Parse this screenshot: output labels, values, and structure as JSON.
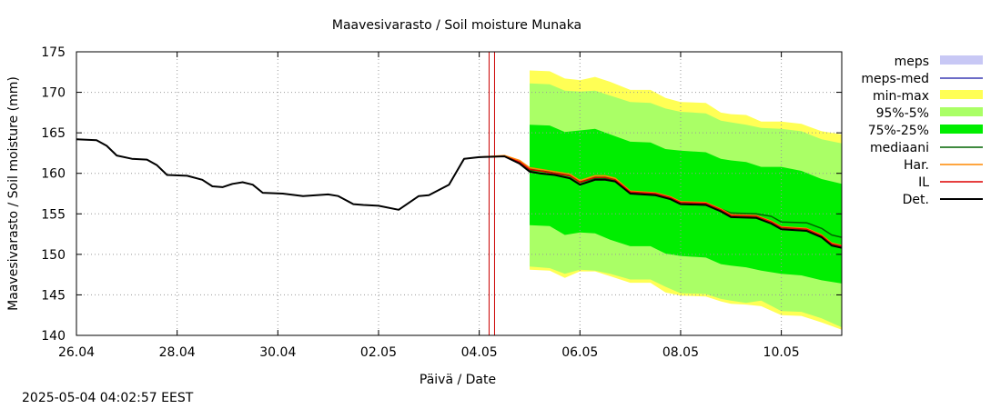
{
  "chart_data": {
    "type": "line",
    "title": "Maavesivarasto / Soil moisture   Munaka",
    "xlabel": "Päivä / Date",
    "ylabel": "Maavesivarasto / Soil moisture (mm)",
    "ylim": [
      140,
      175
    ],
    "yticks": [
      140,
      145,
      150,
      155,
      160,
      165,
      170,
      175
    ],
    "xlim": [
      0,
      15.2
    ],
    "xticks": [
      {
        "x": 0,
        "label": "26.04"
      },
      {
        "x": 2,
        "label": "28.04"
      },
      {
        "x": 4,
        "label": "30.04"
      },
      {
        "x": 6,
        "label": "02.05"
      },
      {
        "x": 8,
        "label": "04.05"
      },
      {
        "x": 10,
        "label": "06.05"
      },
      {
        "x": 12,
        "label": "08.05"
      },
      {
        "x": 14,
        "label": "10.05"
      }
    ],
    "grid": true,
    "legend_position": "right",
    "forecast_marker_x": 8.25,
    "legend": [
      {
        "label": "meps",
        "kind": "box",
        "color": "#c8c8f5"
      },
      {
        "label": "meps-med",
        "kind": "line",
        "color": "#3a3ab4"
      },
      {
        "label": "min-max",
        "kind": "box",
        "color": "#ffff55"
      },
      {
        "label": "95%-5%",
        "kind": "box",
        "color": "#aaff66"
      },
      {
        "label": "75%-25%",
        "kind": "box",
        "color": "#00ee00"
      },
      {
        "label": "mediaani",
        "kind": "line",
        "color": "#006400"
      },
      {
        "label": "Har.",
        "kind": "line",
        "color": "#ff8800"
      },
      {
        "label": "IL",
        "kind": "line",
        "color": "#dd0000"
      },
      {
        "label": "Det.",
        "kind": "line",
        "color": "#000000"
      }
    ],
    "series": [
      {
        "name": "Det.",
        "color": "#000000",
        "x": [
          0,
          0.4,
          0.6,
          0.8,
          1.1,
          1.4,
          1.6,
          1.8,
          2.2,
          2.5,
          2.7,
          2.9,
          3.1,
          3.3,
          3.5,
          3.7,
          4.1,
          4.5,
          5.0,
          5.2,
          5.5,
          5.7,
          6.0,
          6.4,
          6.8,
          7.0,
          7.4,
          7.7,
          8.0,
          8.5,
          8.8,
          9.0,
          9.2,
          9.5,
          9.8,
          10.0,
          10.3,
          10.5,
          10.7,
          11.0,
          11.5,
          11.8,
          12.0,
          12.5,
          12.8,
          13.0,
          13.5,
          13.8,
          14.0,
          14.5,
          14.8,
          15.0,
          15.2
        ],
        "y": [
          164.2,
          164.1,
          163.4,
          162.2,
          161.8,
          161.7,
          161.0,
          159.8,
          159.7,
          159.2,
          158.4,
          158.3,
          158.7,
          158.9,
          158.6,
          157.6,
          157.5,
          157.2,
          157.4,
          157.2,
          156.2,
          156.1,
          156.0,
          155.5,
          157.2,
          157.3,
          158.6,
          161.8,
          162.0,
          162.1,
          161.2,
          160.2,
          160.0,
          159.8,
          159.4,
          158.6,
          159.2,
          159.2,
          159.0,
          157.5,
          157.3,
          156.8,
          156.2,
          156.1,
          155.3,
          154.6,
          154.5,
          153.8,
          153.1,
          152.9,
          152.1,
          151.1,
          150.8
        ]
      },
      {
        "name": "IL",
        "color": "#dd0000",
        "x": [
          8.0,
          8.5,
          8.8,
          9.0,
          9.2,
          9.5,
          9.8,
          10.0,
          10.3,
          10.5,
          10.7,
          11.0,
          11.5,
          11.8,
          12.0,
          12.5,
          12.8,
          13.0,
          13.5,
          13.8,
          14.0,
          14.5,
          14.8,
          15.0,
          15.2
        ],
        "y": [
          162.0,
          162.1,
          161.4,
          160.5,
          160.3,
          160.0,
          159.7,
          158.9,
          159.5,
          159.5,
          159.2,
          157.7,
          157.5,
          157.0,
          156.4,
          156.3,
          155.5,
          154.8,
          154.7,
          154.0,
          153.3,
          153.1,
          152.3,
          151.3,
          151.0
        ]
      },
      {
        "name": "Har.",
        "color": "#ff8800",
        "x": [
          8.0,
          8.5,
          8.8,
          9.0,
          9.2,
          9.5,
          9.8,
          10.0,
          10.3,
          10.5,
          10.7,
          11.0,
          11.5,
          11.8,
          12.0,
          12.5,
          12.8,
          13.0,
          13.5,
          13.8,
          14.0,
          14.5,
          14.8,
          15.0,
          15.2
        ],
        "y": [
          162.0,
          162.2,
          161.6,
          160.7,
          160.5,
          160.2,
          159.9,
          159.1,
          159.7,
          159.7,
          159.4,
          157.8,
          157.6,
          157.1,
          156.5,
          156.4,
          155.6,
          154.9,
          154.8,
          154.1,
          153.4,
          153.2,
          152.4,
          151.4,
          151.1
        ]
      },
      {
        "name": "mediaani",
        "color": "#006400",
        "x": [
          8.0,
          8.5,
          8.8,
          9.0,
          9.2,
          9.5,
          9.8,
          10.0,
          10.3,
          10.5,
          10.7,
          11.0,
          11.5,
          11.8,
          12.0,
          12.5,
          12.8,
          13.0,
          13.5,
          13.8,
          14.0,
          14.5,
          14.8,
          15.0,
          15.2
        ],
        "y": [
          162.0,
          162.1,
          161.3,
          160.4,
          160.3,
          160.2,
          159.7,
          158.9,
          159.4,
          159.4,
          159.1,
          157.7,
          157.5,
          157.0,
          156.4,
          156.3,
          155.6,
          155.1,
          155.0,
          154.7,
          154.0,
          153.9,
          153.2,
          152.4,
          152.1
        ]
      }
    ],
    "bands": [
      {
        "name": "min-max",
        "color": "#ffff55",
        "x": [
          9.0,
          9.4,
          9.7,
          10.0,
          10.3,
          10.6,
          11.0,
          11.4,
          11.7,
          12.0,
          12.5,
          12.8,
          13.0,
          13.3,
          13.6,
          14.0,
          14.4,
          14.8,
          15.2
        ],
        "upper": [
          172.7,
          172.6,
          171.7,
          171.5,
          171.9,
          171.3,
          170.3,
          170.3,
          169.3,
          168.8,
          168.7,
          167.5,
          167.3,
          167.2,
          166.4,
          166.4,
          166.1,
          165.2,
          164.8
        ],
        "lower": [
          148.1,
          148.0,
          147.1,
          147.9,
          147.9,
          147.3,
          146.5,
          146.5,
          145.3,
          144.9,
          144.8,
          144.2,
          143.9,
          143.8,
          143.6,
          142.5,
          142.4,
          141.6,
          140.7
        ]
      },
      {
        "name": "95%-5%",
        "color": "#aaff66",
        "x": [
          9.0,
          9.4,
          9.7,
          10.0,
          10.3,
          10.6,
          11.0,
          11.4,
          11.7,
          12.0,
          12.5,
          12.8,
          13.0,
          13.3,
          13.6,
          14.0,
          14.4,
          14.8,
          15.2
        ],
        "upper": [
          171.1,
          171.0,
          170.2,
          170.1,
          170.2,
          169.6,
          168.8,
          168.7,
          168.0,
          167.6,
          167.4,
          166.5,
          166.3,
          166.0,
          165.6,
          165.5,
          165.2,
          164.2,
          163.7
        ],
        "lower": [
          148.5,
          148.3,
          147.6,
          148.1,
          148.0,
          147.6,
          146.9,
          146.9,
          146.0,
          145.2,
          145.1,
          144.5,
          144.3,
          144.0,
          144.3,
          143.0,
          142.9,
          142.1,
          141.0
        ]
      },
      {
        "name": "75%-25%",
        "color": "#00ee00",
        "x": [
          9.0,
          9.4,
          9.7,
          10.0,
          10.3,
          10.6,
          11.0,
          11.4,
          11.7,
          12.0,
          12.5,
          12.8,
          13.0,
          13.3,
          13.6,
          14.0,
          14.4,
          14.8,
          15.2
        ],
        "upper": [
          166.0,
          165.9,
          165.1,
          165.3,
          165.5,
          164.8,
          163.9,
          163.8,
          163.0,
          162.8,
          162.6,
          161.8,
          161.6,
          161.4,
          160.8,
          160.8,
          160.3,
          159.3,
          158.7
        ],
        "lower": [
          153.6,
          153.5,
          152.4,
          152.7,
          152.6,
          151.8,
          151.0,
          151.0,
          150.1,
          149.8,
          149.6,
          148.8,
          148.6,
          148.4,
          148.0,
          147.6,
          147.4,
          146.8,
          146.4
        ]
      }
    ]
  },
  "footer": {
    "timestamp": "2025-05-04 04:02:57 EEST"
  }
}
